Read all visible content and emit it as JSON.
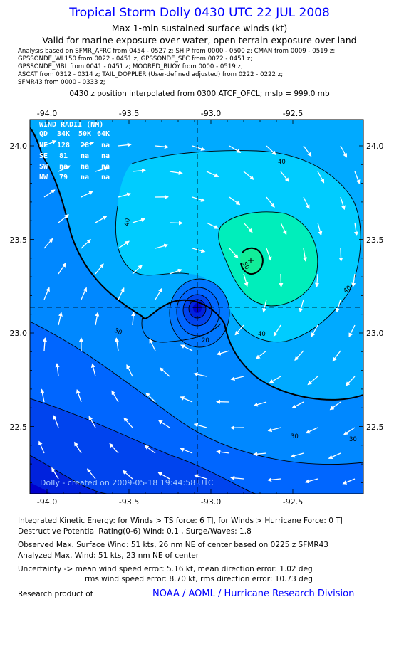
{
  "header": {
    "title": "Tropical Storm Dolly 0430 UTC 22 JUL 2008",
    "subtitle": "Max 1-min sustained surface winds (kt)",
    "valid": "Valid for marine exposure over water, open terrain exposure over land"
  },
  "analysis_lines": [
    "Analysis based on   SFMR_AFRC from 0454 - 0527 z;  SHIP from 0000 - 0500 z;  CMAN from 0009 - 0519 z;",
    "GPSSONDE_WL150 from 0022 - 0451 z;  GPSSONDE_SFC from 0022 - 0451 z;",
    "GPSSONDE_MBL from 0041 - 0451 z;  MOORED_BUOY from 0000 - 0519 z;",
    "ASCAT from 0312 - 0314 z;  TAIL_DOPPLER (User-defined adjusted) from 0222 - 0222 z;",
    "SFMR43 from 0000 - 0333 z;"
  ],
  "position_note": "0430 z position interpolated from 0300 ATCF_OFCL; mslp = 999.0 mb",
  "wind_radii": {
    "title": "WIND RADII (NM)",
    "header": [
      "QD",
      "34K",
      "50K",
      "64K"
    ],
    "rows": [
      [
        "NE",
        "128",
        "28",
        "na"
      ],
      [
        "SE",
        "81",
        "na",
        "na"
      ],
      [
        "SW",
        "na",
        "na",
        "na"
      ],
      [
        "NW",
        "79",
        "na",
        "na"
      ]
    ]
  },
  "chart_data": {
    "type": "contour",
    "x_ticks": [
      "-94.0",
      "-93.5",
      "-93.0",
      "-92.5"
    ],
    "y_ticks": [
      "24.0",
      "23.5",
      "23.0",
      "22.5"
    ],
    "xlim": [
      -94.13,
      -92.37
    ],
    "ylim": [
      22.12,
      24.13
    ],
    "center": {
      "lon": -93.06,
      "lat": 23.14
    },
    "max_wind_location": {
      "lon": -92.73,
      "lat": 23.38
    },
    "contour_labels": [
      "40",
      "40",
      "40",
      "40",
      "50",
      "30",
      "30",
      "30",
      "20"
    ],
    "thick_contour_level": 34,
    "fill_levels": [
      10,
      15,
      20,
      25,
      30,
      35,
      40,
      45,
      50
    ],
    "fill_colors": [
      "#0000cc",
      "#0022dd",
      "#0044ee",
      "#0066ff",
      "#0088ff",
      "#00aaff",
      "#00ccff",
      "#00ffff",
      "#00eebb",
      "#11ee99"
    ],
    "wind_vectors": "streamline arrows showing cyclonic circulation",
    "footer_label": "Dolly - created on 2009-05-18 19:44:58 UTC"
  },
  "stats": {
    "ike": "Integrated Kinetic Energy:  for Winds > TS force: 6 TJ,  for Winds > Hurricane Force: 0 TJ",
    "dpr": "Destructive Potential Rating(0-6)   Wind: 0.1 , Surge/Waves: 1.8",
    "observed": "Observed Max. Surface Wind: 51 kts, 26 nm NE of center based on 0225 z SFMR43",
    "analyzed": "Analyzed Max. Wind: 51 kts, 23 nm NE of center",
    "unc1": "Uncertainty -> mean wind speed error: 5.16 kt,   mean direction error: 1.02 deg",
    "unc2": "rms wind speed error: 8.70 kt,   rms direction error: 10.73 deg"
  },
  "footer": {
    "research": "Research product of",
    "org": "NOAA / AOML / Hurricane Research Division"
  }
}
